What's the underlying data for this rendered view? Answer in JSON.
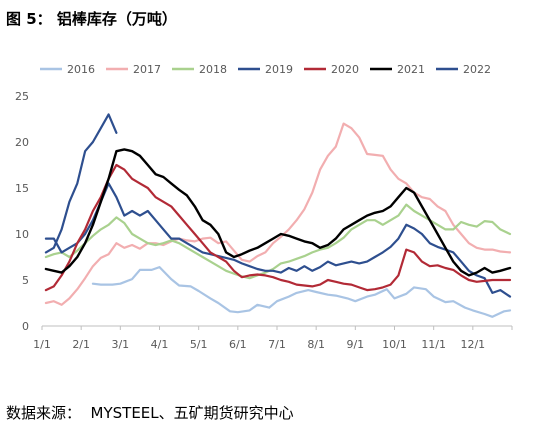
{
  "figure": {
    "caption_label": "图 5：",
    "caption_title": "铝棒库存（万吨）",
    "source": "数据来源：  MYSTEEL、五矿期货研究中心"
  },
  "chart_data": {
    "type": "line",
    "title": "",
    "xlabel": "",
    "ylabel": "",
    "x_axis": "day of year (week ticks)",
    "xticks": [
      "1/1",
      "2/1",
      "3/1",
      "4/1",
      "5/1",
      "6/1",
      "7/1",
      "8/1",
      "9/1",
      "10/1",
      "11/1",
      "12/1"
    ],
    "ylim": [
      0,
      25
    ],
    "yticks": [
      0,
      5,
      10,
      15,
      20,
      25
    ],
    "grid": false,
    "legend_position": "top",
    "series": [
      {
        "name": "2016",
        "color": "#a9c4e4",
        "x": [
          2.3,
          2.5,
          2.8,
          3.0,
          3.3,
          3.5,
          3.8,
          4.0,
          4.3,
          4.5,
          4.8,
          5.0,
          5.3,
          5.5,
          5.8,
          6.0,
          6.3,
          6.5,
          6.8,
          7.0,
          7.3,
          7.5,
          7.8,
          8.0,
          8.3,
          8.5,
          8.8,
          9.0,
          9.3,
          9.5,
          9.8,
          10.0,
          10.3,
          10.5,
          10.8,
          11.0,
          11.3,
          11.5,
          11.8,
          12.0,
          12.3,
          12.5,
          12.8,
          12.95
        ],
        "y": [
          4.6,
          4.5,
          4.5,
          4.6,
          5.1,
          6.1,
          6.1,
          6.4,
          5.1,
          4.4,
          4.3,
          3.8,
          3.0,
          2.5,
          1.6,
          1.5,
          1.7,
          2.3,
          2.0,
          2.7,
          3.2,
          3.6,
          3.9,
          3.7,
          3.4,
          3.3,
          3.0,
          2.7,
          3.2,
          3.4,
          4.0,
          3.0,
          3.5,
          4.2,
          4.0,
          3.2,
          2.6,
          2.7,
          2.0,
          1.7,
          1.3,
          1.0,
          1.6,
          1.7
        ]
      },
      {
        "name": "2017",
        "color": "#f2aeb0",
        "x": [
          1.1,
          1.3,
          1.5,
          1.7,
          1.9,
          2.1,
          2.3,
          2.5,
          2.7,
          2.9,
          3.1,
          3.3,
          3.5,
          3.7,
          3.9,
          4.1,
          4.3,
          4.5,
          4.7,
          4.9,
          5.1,
          5.3,
          5.5,
          5.7,
          5.9,
          6.1,
          6.3,
          6.5,
          6.7,
          6.9,
          7.1,
          7.3,
          7.5,
          7.7,
          7.9,
          8.1,
          8.3,
          8.5,
          8.7,
          8.9,
          9.1,
          9.3,
          9.5,
          9.7,
          9.9,
          10.1,
          10.3,
          10.5,
          10.7,
          10.9,
          11.1,
          11.3,
          11.5,
          11.7,
          11.9,
          12.1,
          12.3,
          12.5,
          12.7,
          12.95
        ],
        "y": [
          2.5,
          2.7,
          2.3,
          3.0,
          4.0,
          5.2,
          6.5,
          7.4,
          7.8,
          9.0,
          8.5,
          8.8,
          8.4,
          9.0,
          9.0,
          8.8,
          9.2,
          9.5,
          9.3,
          9.2,
          9.5,
          9.6,
          9.0,
          9.2,
          8.2,
          7.2,
          7.0,
          7.6,
          8.0,
          9.0,
          9.7,
          10.5,
          11.5,
          12.7,
          14.5,
          17.0,
          18.5,
          19.5,
          22.0,
          21.5,
          20.5,
          18.7,
          18.6,
          18.5,
          17.0,
          16.0,
          15.5,
          14.5,
          14.0,
          13.8,
          13.0,
          12.5,
          11.0,
          10.0,
          9.0,
          8.5,
          8.3,
          8.3,
          8.1,
          8.0
        ]
      },
      {
        "name": "2018",
        "color": "#a9d18e",
        "x": [
          1.1,
          1.3,
          1.5,
          1.7,
          1.9,
          2.1,
          2.3,
          2.5,
          2.7,
          2.9,
          3.1,
          3.3,
          3.5,
          3.7,
          3.9,
          4.1,
          4.3,
          4.5,
          4.7,
          4.9,
          5.1,
          5.3,
          5.5,
          5.7,
          5.9,
          6.1,
          6.3,
          6.5,
          6.7,
          6.9,
          7.1,
          7.3,
          7.5,
          7.7,
          7.9,
          8.1,
          8.3,
          8.5,
          8.7,
          8.9,
          9.1,
          9.3,
          9.5,
          9.7,
          9.9,
          10.1,
          10.3,
          10.5,
          10.7,
          10.9,
          11.1,
          11.3,
          11.5,
          11.7,
          11.9,
          12.1,
          12.3,
          12.5,
          12.7,
          12.95
        ],
        "y": [
          7.5,
          7.8,
          8.0,
          7.5,
          8.2,
          9.0,
          9.8,
          10.5,
          11.0,
          11.8,
          11.2,
          10.0,
          9.5,
          9.0,
          8.8,
          9.0,
          9.3,
          9.0,
          8.5,
          8.0,
          7.5,
          7.0,
          6.5,
          6.0,
          5.7,
          5.4,
          5.2,
          5.5,
          5.8,
          6.2,
          6.8,
          7.0,
          7.3,
          7.6,
          8.0,
          8.3,
          8.5,
          9.0,
          9.6,
          10.5,
          11.0,
          11.5,
          11.5,
          11.0,
          11.5,
          12.0,
          13.2,
          12.5,
          12.0,
          11.5,
          11.0,
          10.5,
          10.5,
          11.3,
          11.0,
          10.8,
          11.4,
          11.3,
          10.5,
          10.0
        ]
      },
      {
        "name": "2019",
        "color": "#2e4f8f",
        "x": [
          1.1,
          1.3,
          1.5,
          1.7,
          1.9,
          2.1,
          2.3,
          2.5,
          2.7,
          2.9,
          3.1,
          3.3,
          3.5,
          3.7,
          3.9,
          4.1,
          4.3,
          4.5,
          4.7,
          4.9,
          5.1,
          5.3,
          5.5,
          5.7,
          5.9,
          6.1,
          6.3,
          6.5,
          6.7,
          6.9,
          7.1,
          7.3,
          7.5,
          7.7,
          7.9,
          8.1,
          8.3,
          8.5,
          8.7,
          8.9,
          9.1,
          9.3,
          9.5,
          9.7,
          9.9,
          10.1,
          10.3,
          10.5,
          10.7,
          10.9,
          11.1,
          11.3,
          11.5,
          11.7,
          11.9,
          12.1,
          12.3,
          12.5,
          12.7,
          12.95
        ],
        "y": [
          9.5,
          9.5,
          8.0,
          8.5,
          9.0,
          10.0,
          11.5,
          13.5,
          15.5,
          14.0,
          12.0,
          12.5,
          12.0,
          12.5,
          11.5,
          10.5,
          9.5,
          9.5,
          9.0,
          8.5,
          8.0,
          7.8,
          7.6,
          7.4,
          7.2,
          6.8,
          6.5,
          6.2,
          6.0,
          6.0,
          5.8,
          6.3,
          6.0,
          6.5,
          6.0,
          6.4,
          7.0,
          6.6,
          6.8,
          7.0,
          6.8,
          7.0,
          7.5,
          8.0,
          8.6,
          9.5,
          11.0,
          10.6,
          10.0,
          9.0,
          8.6,
          8.3,
          8.0,
          7.0,
          6.0,
          5.5,
          5.2,
          3.6,
          3.9,
          3.2
        ]
      },
      {
        "name": "2020",
        "color": "#b22a36",
        "x": [
          1.1,
          1.3,
          1.5,
          1.7,
          1.9,
          2.1,
          2.3,
          2.5,
          2.7,
          2.9,
          3.1,
          3.3,
          3.5,
          3.7,
          3.9,
          4.1,
          4.3,
          4.5,
          4.7,
          4.9,
          5.1,
          5.3,
          5.5,
          5.7,
          5.9,
          6.1,
          6.3,
          6.5,
          6.7,
          6.9,
          7.1,
          7.3,
          7.5,
          7.7,
          7.9,
          8.1,
          8.3,
          8.5,
          8.7,
          8.9,
          9.1,
          9.3,
          9.5,
          9.7,
          9.9,
          10.1,
          10.3,
          10.5,
          10.7,
          10.9,
          11.1,
          11.3,
          11.5,
          11.7,
          11.9,
          12.1,
          12.3,
          12.5,
          12.7,
          12.95
        ],
        "y": [
          3.9,
          4.3,
          5.5,
          7.0,
          9.0,
          10.5,
          12.5,
          14.0,
          16.0,
          17.5,
          17.0,
          16.0,
          15.5,
          15.0,
          14.0,
          13.5,
          13.0,
          12.0,
          11.0,
          10.0,
          9.0,
          8.0,
          7.5,
          7.0,
          6.0,
          5.3,
          5.5,
          5.6,
          5.5,
          5.3,
          5.0,
          4.8,
          4.5,
          4.4,
          4.3,
          4.5,
          5.0,
          4.8,
          4.6,
          4.5,
          4.2,
          3.9,
          4.0,
          4.2,
          4.5,
          5.5,
          8.3,
          8.0,
          7.0,
          6.5,
          6.6,
          6.3,
          6.1,
          5.5,
          5.0,
          4.8,
          4.9,
          5.0,
          5.0,
          5.0
        ]
      },
      {
        "name": "2021",
        "color": "#000000",
        "x": [
          1.1,
          1.3,
          1.5,
          1.7,
          1.9,
          2.1,
          2.3,
          2.5,
          2.7,
          2.9,
          3.1,
          3.3,
          3.5,
          3.7,
          3.9,
          4.1,
          4.3,
          4.5,
          4.7,
          4.9,
          5.1,
          5.3,
          5.5,
          5.7,
          5.9,
          6.1,
          6.3,
          6.5,
          6.7,
          6.9,
          7.1,
          7.3,
          7.5,
          7.7,
          7.9,
          8.1,
          8.3,
          8.5,
          8.7,
          8.9,
          9.1,
          9.3,
          9.5,
          9.7,
          9.9,
          10.1,
          10.3,
          10.5,
          10.7,
          10.9,
          11.1,
          11.3,
          11.5,
          11.7,
          11.9,
          12.1,
          12.3,
          12.5,
          12.7,
          12.95
        ],
        "y": [
          6.2,
          6.0,
          5.8,
          6.5,
          7.5,
          9.0,
          11.0,
          13.5,
          16.0,
          19.0,
          19.2,
          19.0,
          18.5,
          17.5,
          16.5,
          16.2,
          15.5,
          14.8,
          14.2,
          13.0,
          11.5,
          11.0,
          10.0,
          8.0,
          7.5,
          7.8,
          8.2,
          8.5,
          9.0,
          9.5,
          10.0,
          9.8,
          9.5,
          9.2,
          9.0,
          8.5,
          8.8,
          9.5,
          10.5,
          11.0,
          11.5,
          12.0,
          12.3,
          12.5,
          13.0,
          14.0,
          15.0,
          14.5,
          13.0,
          11.5,
          10.0,
          8.5,
          7.0,
          6.0,
          5.5,
          5.8,
          6.3,
          5.8,
          6.0,
          6.3
        ]
      },
      {
        "name": "2022",
        "color": "#2e4f8f",
        "x": [
          1.1,
          1.3,
          1.5,
          1.7,
          1.9,
          2.1,
          2.3,
          2.5,
          2.7,
          2.9
        ],
        "y": [
          8.0,
          8.5,
          10.5,
          13.5,
          15.5,
          19.0,
          20.0,
          21.5,
          23.0,
          21.0
        ]
      }
    ]
  }
}
